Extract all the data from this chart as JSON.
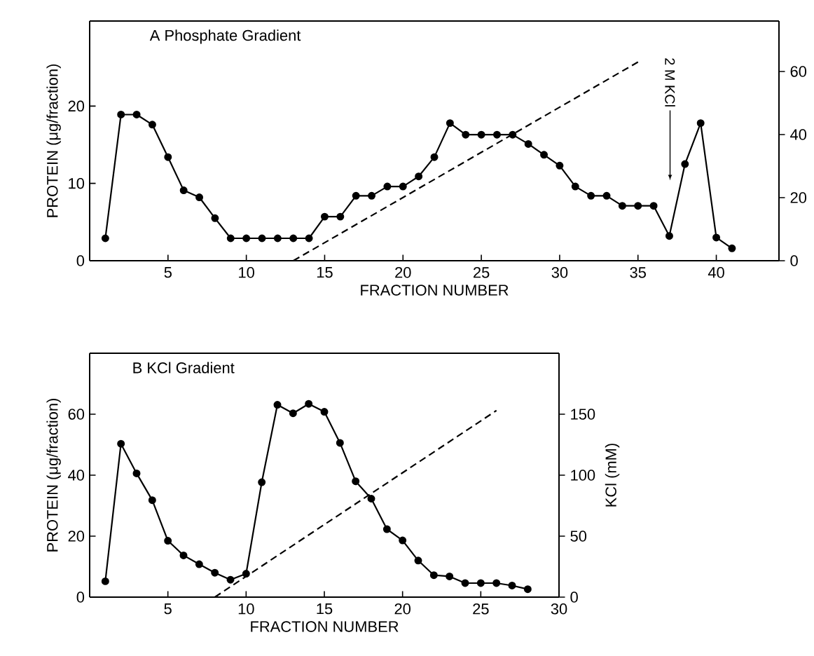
{
  "chart_data": [
    {
      "type": "line",
      "title": "A  Phosphate Gradient",
      "xlabel": "FRACTION NUMBER",
      "ylabel": "PROTEIN (μg/fraction)",
      "xlim": [
        0,
        44
      ],
      "xticks": [
        5,
        10,
        15,
        20,
        25,
        30,
        35,
        40
      ],
      "ylim": [
        0,
        31
      ],
      "yticks": [
        0,
        10,
        20
      ],
      "y2lim": [
        0,
        76
      ],
      "y2ticks": [
        0,
        20,
        40,
        60
      ],
      "series": [
        {
          "color": "#000000",
          "marker": "circle",
          "line_style": "solid",
          "x": [
            1,
            2,
            3,
            4,
            5,
            6,
            7,
            8,
            9,
            10,
            11,
            12,
            13,
            14,
            15,
            16,
            17,
            18,
            19,
            20,
            21,
            22,
            23,
            24,
            25,
            26,
            27,
            28,
            29,
            30,
            31,
            32,
            33,
            34,
            35,
            36,
            37,
            38,
            39,
            40,
            41
          ],
          "values": [
            2.9,
            18.9,
            18.9,
            17.6,
            13.4,
            9.1,
            8.2,
            5.5,
            2.9,
            2.9,
            2.9,
            2.9,
            2.9,
            2.9,
            5.7,
            5.7,
            8.4,
            8.4,
            9.6,
            9.6,
            10.9,
            13.4,
            17.8,
            16.3,
            16.3,
            16.3,
            16.3,
            15.1,
            13.7,
            12.3,
            9.6,
            8.4,
            8.4,
            7.1,
            7.1,
            7.1,
            3.2,
            12.5,
            17.8,
            3.0,
            1.6
          ]
        },
        {
          "color": "#000000",
          "marker": "none",
          "line_style": "dashed",
          "axis": "y2",
          "x": [
            13,
            35
          ],
          "values": [
            0,
            63
          ]
        }
      ],
      "annotations": [
        "2 M KCl"
      ]
    },
    {
      "type": "line",
      "title": "B  KCl Gradient",
      "xlabel": "FRACTION NUMBER",
      "ylabel": "PROTEIN (μg/fraction)",
      "y2label": "KCl (mM)",
      "xlim": [
        0,
        30
      ],
      "xticks": [
        5,
        10,
        15,
        20,
        25,
        30
      ],
      "ylim": [
        0,
        80
      ],
      "yticks": [
        0,
        20,
        40,
        60
      ],
      "y2lim": [
        0,
        200
      ],
      "y2ticks": [
        0,
        50,
        100,
        150
      ],
      "series": [
        {
          "color": "#000000",
          "marker": "circle",
          "line_style": "solid",
          "x": [
            1,
            2,
            3,
            4,
            5,
            6,
            7,
            8,
            9,
            10,
            11,
            12,
            13,
            14,
            15,
            16,
            17,
            18,
            19,
            20,
            21,
            22,
            23,
            24,
            25,
            26,
            27,
            28
          ],
          "values": [
            5.2,
            50.3,
            40.6,
            31.8,
            18.5,
            13.7,
            10.8,
            8.0,
            5.7,
            7.7,
            37.7,
            63.1,
            60.3,
            63.4,
            60.8,
            50.6,
            38,
            32.3,
            22.3,
            18.6,
            12,
            7.2,
            6.8,
            4.6,
            4.6,
            4.6,
            3.8,
            2.6
          ]
        },
        {
          "color": "#000000",
          "marker": "none",
          "line_style": "dashed",
          "axis": "y2",
          "x": [
            8,
            26
          ],
          "values": [
            0,
            153
          ]
        }
      ]
    }
  ]
}
